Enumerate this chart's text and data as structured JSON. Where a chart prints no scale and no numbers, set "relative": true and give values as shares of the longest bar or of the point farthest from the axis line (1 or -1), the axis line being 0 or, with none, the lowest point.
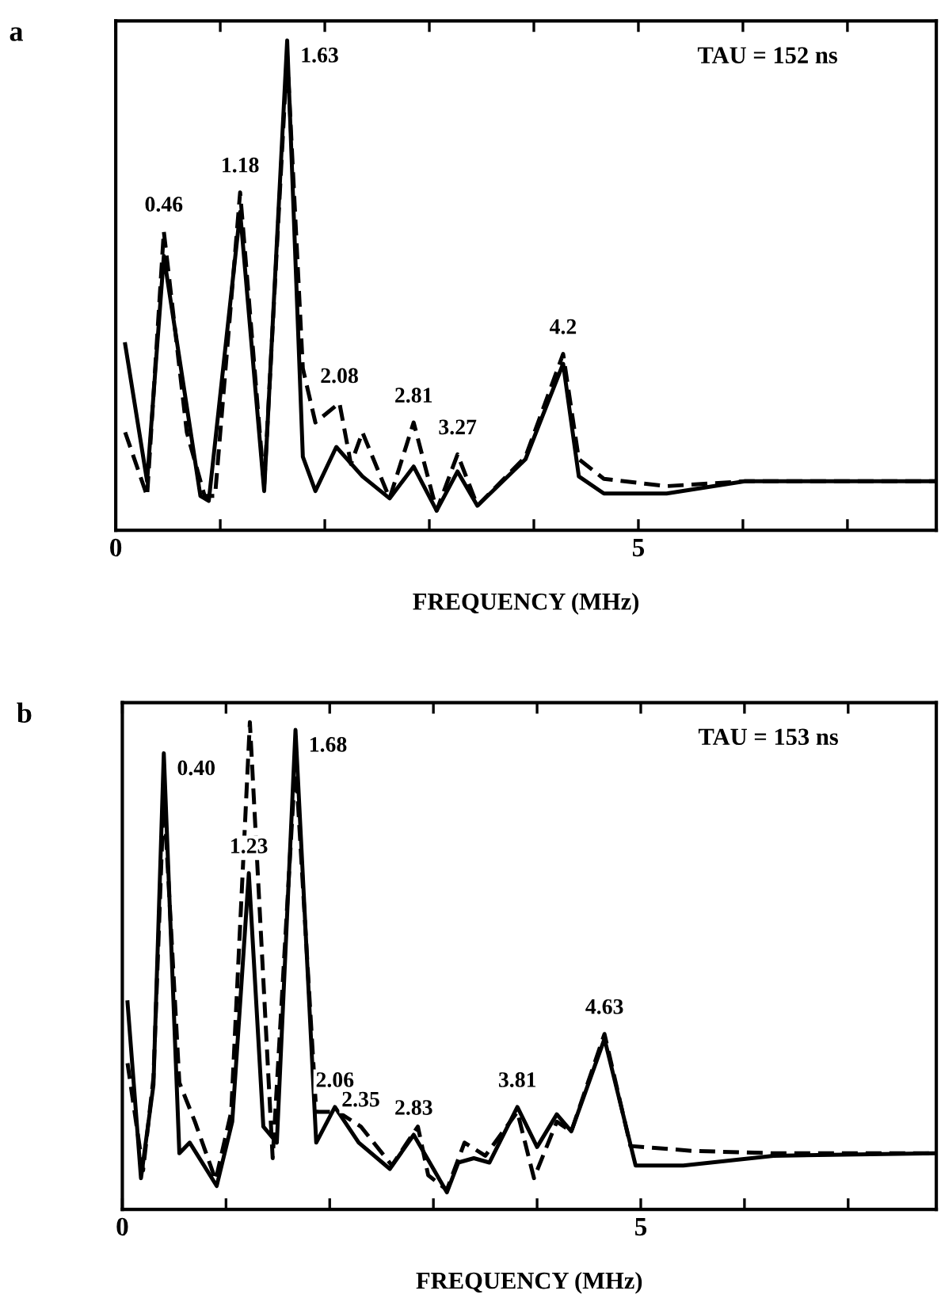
{
  "chart_data": [
    {
      "type": "line",
      "title": "a",
      "xlabel": "FREQUENCY (MHz)",
      "relative": true,
      "xlim": [
        0,
        7.85
      ],
      "xticks": [
        0,
        {
          "value": 1,
          "label": null
        },
        {
          "value": 2,
          "label": null
        },
        {
          "value": 3,
          "label": null
        },
        {
          "value": 4,
          "label": null
        },
        5,
        {
          "value": 6,
          "label": null
        },
        {
          "value": 7,
          "label": null
        }
      ],
      "series": [
        {
          "color": "#000000",
          "line_style": "solid",
          "x": [
            0.09,
            0.3,
            0.46,
            0.81,
            0.89,
            1.19,
            1.42,
            1.64,
            1.79,
            1.91,
            2.11,
            2.36,
            2.62,
            2.85,
            3.07,
            3.27,
            3.46,
            3.92,
            4.28,
            4.43,
            4.67,
            5.27,
            6.02,
            7.85
          ],
          "values": [
            0.38,
            0.1,
            0.56,
            0.07,
            0.06,
            0.65,
            0.08,
            1.0,
            0.15,
            0.08,
            0.17,
            0.11,
            0.065,
            0.13,
            0.04,
            0.12,
            0.05,
            0.145,
            0.34,
            0.11,
            0.075,
            0.075,
            0.1,
            0.1
          ]
        },
        {
          "color": "#000000",
          "line_style": "dashed",
          "x": [
            0.09,
            0.3,
            0.46,
            0.68,
            0.85,
            0.95,
            1.19,
            1.42,
            1.64,
            1.79,
            1.91,
            2.14,
            2.25,
            2.36,
            2.62,
            2.85,
            3.07,
            3.27,
            3.46,
            3.92,
            4.28,
            4.43,
            4.67,
            5.27,
            6.02,
            7.85
          ],
          "values": [
            0.2,
            0.07,
            0.61,
            0.2,
            0.07,
            0.07,
            0.69,
            0.09,
            0.97,
            0.33,
            0.22,
            0.26,
            0.135,
            0.2,
            0.065,
            0.22,
            0.04,
            0.155,
            0.05,
            0.15,
            0.36,
            0.145,
            0.105,
            0.09,
            0.1,
            0.1
          ]
        }
      ],
      "annotations": [
        {
          "text": "0.46",
          "x": 0.46,
          "y": 0.61
        },
        {
          "text": "1.18",
          "x": 1.19,
          "y": 0.69
        },
        {
          "text": "1.63",
          "x": 1.64,
          "y": 1.0
        },
        {
          "text": "2.08",
          "x": 2.14,
          "y": 0.26
        },
        {
          "text": "2.81",
          "x": 2.85,
          "y": 0.22
        },
        {
          "text": "3.27",
          "x": 3.27,
          "y": 0.155
        },
        {
          "text": "4.2",
          "x": 4.28,
          "y": 0.36
        },
        "TAU = 152 ns"
      ]
    },
    {
      "type": "line",
      "title": "b",
      "xlabel": "FREQUENCY (MHz)",
      "relative": true,
      "xlim": [
        0,
        7.85
      ],
      "xticks": [
        0,
        {
          "value": 1,
          "label": null
        },
        {
          "value": 2,
          "label": null
        },
        {
          "value": 3,
          "label": null
        },
        {
          "value": 4,
          "label": null
        },
        5,
        {
          "value": 6,
          "label": null
        },
        {
          "value": 7,
          "label": null
        }
      ],
      "series": [
        {
          "color": "#000000",
          "line_style": "solid",
          "x": [
            0.05,
            0.18,
            0.3,
            0.4,
            0.55,
            0.65,
            0.91,
            1.06,
            1.22,
            1.36,
            1.49,
            1.67,
            1.87,
            2.05,
            2.28,
            2.58,
            2.81,
            3.13,
            3.24,
            3.39,
            3.54,
            3.81,
            4.0,
            4.19,
            4.33,
            4.65,
            4.95,
            5.41,
            6.28,
            7.85
          ],
          "values": [
            0.425,
            0.064,
            0.255,
            0.936,
            0.115,
            0.137,
            0.048,
            0.18,
            0.69,
            0.17,
            0.137,
            0.984,
            0.137,
            0.21,
            0.137,
            0.083,
            0.153,
            0.035,
            0.096,
            0.105,
            0.096,
            0.21,
            0.128,
            0.195,
            0.16,
            0.35,
            0.09,
            0.09,
            0.11,
            0.115
          ]
        },
        {
          "color": "#000000",
          "line_style": "dashed",
          "x": [
            0.05,
            0.2,
            0.3,
            0.4,
            0.55,
            0.7,
            0.9,
            1.05,
            1.23,
            1.45,
            1.67,
            1.87,
            2.08,
            2.3,
            2.6,
            2.85,
            2.95,
            3.13,
            3.3,
            3.5,
            3.81,
            3.97,
            4.19,
            4.33,
            4.65,
            4.9,
            5.5,
            6.3,
            7.85
          ],
          "values": [
            0.3,
            0.08,
            0.27,
            0.85,
            0.26,
            0.18,
            0.06,
            0.2,
            1.0,
            0.105,
            0.92,
            0.2,
            0.2,
            0.17,
            0.09,
            0.17,
            0.07,
            0.04,
            0.137,
            0.11,
            0.2,
            0.064,
            0.18,
            0.16,
            0.36,
            0.13,
            0.12,
            0.115,
            0.115
          ]
        }
      ],
      "annotations": [
        {
          "text": "0.40",
          "x": 0.4,
          "y": 0.936
        },
        {
          "text": "1.23",
          "x": 1.22,
          "y": 0.69
        },
        {
          "text": "1.68",
          "x": 1.67,
          "y": 0.984
        },
        {
          "text": "2.06",
          "x": 2.05,
          "y": 0.21
        },
        {
          "text": "2.35",
          "x": 2.3,
          "y": 0.17
        },
        {
          "text": "2.83",
          "x": 2.81,
          "y": 0.153
        },
        {
          "text": "3.81",
          "x": 3.81,
          "y": 0.21
        },
        {
          "text": "4.63",
          "x": 4.65,
          "y": 0.36
        },
        "TAU = 153 ns"
      ]
    }
  ]
}
